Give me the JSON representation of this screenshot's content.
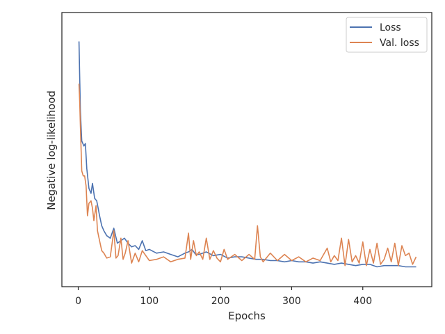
{
  "chart_data": {
    "type": "line",
    "title": "",
    "xlabel": "Epochs",
    "ylabel": "Negative log-likelihood",
    "xlim": [
      -23,
      497
    ],
    "ylim": [
      0,
      100
    ],
    "x_ticks": [
      0,
      100,
      200,
      300,
      400
    ],
    "x_tick_labels": [
      "0",
      "100",
      "200",
      "300",
      "400"
    ],
    "y_ticks_shown": false,
    "grid": false,
    "legend_position": "top-right",
    "series": [
      {
        "name": "Loss",
        "color": "#4c72b0",
        "x": [
          1,
          3,
          5,
          8,
          10,
          12,
          15,
          18,
          20,
          23,
          26,
          28,
          30,
          33,
          36,
          40,
          45,
          50,
          55,
          60,
          65,
          70,
          75,
          80,
          85,
          90,
          95,
          100,
          110,
          120,
          130,
          140,
          150,
          155,
          160,
          165,
          170,
          180,
          190,
          200,
          210,
          220,
          230,
          240,
          250,
          260,
          270,
          280,
          290,
          300,
          310,
          320,
          330,
          340,
          350,
          360,
          370,
          380,
          390,
          400,
          410,
          420,
          430,
          440,
          450,
          460,
          470,
          475
        ],
        "values": [
          94.0,
          66.0,
          54.0,
          52.0,
          53.0,
          43.0,
          35.0,
          33.0,
          37.0,
          31.0,
          30.0,
          27.0,
          24.0,
          20.0,
          18.0,
          16.0,
          15.0,
          19.0,
          13.0,
          14.0,
          15.0,
          13.0,
          11.5,
          12.0,
          10.5,
          14.0,
          10.0,
          10.5,
          9.0,
          9.5,
          8.5,
          7.5,
          9.0,
          9.5,
          10.5,
          8.5,
          8.5,
          9.5,
          8.0,
          8.5,
          7.0,
          7.5,
          7.5,
          7.0,
          6.5,
          6.5,
          6.0,
          6.0,
          5.5,
          6.0,
          5.5,
          5.5,
          5.0,
          5.5,
          5.0,
          4.5,
          5.0,
          4.5,
          4.0,
          4.5,
          4.5,
          3.5,
          4.0,
          4.0,
          4.0,
          3.5,
          3.5,
          3.5
        ]
      },
      {
        "name": "Val. loss",
        "color": "#dd8452",
        "x": [
          1,
          2,
          3,
          5,
          7,
          9,
          11,
          13,
          15,
          18,
          20,
          22,
          25,
          27,
          30,
          33,
          36,
          40,
          45,
          50,
          53,
          56,
          60,
          63,
          66,
          70,
          75,
          80,
          85,
          90,
          100,
          110,
          120,
          130,
          140,
          150,
          155,
          158,
          162,
          166,
          170,
          175,
          180,
          185,
          190,
          195,
          200,
          205,
          210,
          220,
          230,
          240,
          248,
          252,
          256,
          260,
          270,
          280,
          290,
          300,
          310,
          320,
          330,
          340,
          350,
          355,
          360,
          365,
          370,
          375,
          380,
          385,
          390,
          395,
          400,
          405,
          410,
          415,
          420,
          425,
          430,
          435,
          440,
          445,
          450,
          455,
          460,
          465,
          470,
          475
        ],
        "values": [
          77.0,
          70.0,
          60.0,
          42.0,
          40.0,
          40.0,
          36.0,
          24.0,
          29.0,
          30.0,
          27.0,
          22.0,
          28.0,
          18.0,
          14.0,
          10.0,
          9.0,
          7.0,
          7.5,
          18.0,
          7.0,
          8.0,
          15.0,
          6.5,
          9.0,
          14.0,
          5.0,
          9.0,
          5.5,
          10.0,
          6.0,
          6.5,
          7.5,
          5.5,
          6.5,
          7.0,
          17.0,
          6.5,
          14.0,
          8.0,
          9.5,
          6.5,
          15.0,
          6.5,
          10.0,
          7.0,
          5.5,
          10.5,
          6.5,
          8.5,
          6.0,
          8.5,
          6.5,
          20.0,
          7.5,
          5.5,
          9.0,
          6.0,
          8.5,
          6.0,
          7.5,
          5.5,
          7.0,
          6.0,
          11.0,
          5.5,
          8.0,
          6.0,
          15.0,
          4.0,
          14.5,
          5.5,
          8.0,
          5.0,
          13.5,
          4.0,
          10.5,
          5.0,
          13.0,
          4.5,
          6.5,
          11.0,
          5.5,
          13.0,
          4.0,
          12.0,
          8.0,
          9.0,
          4.5,
          7.5
        ]
      }
    ]
  }
}
